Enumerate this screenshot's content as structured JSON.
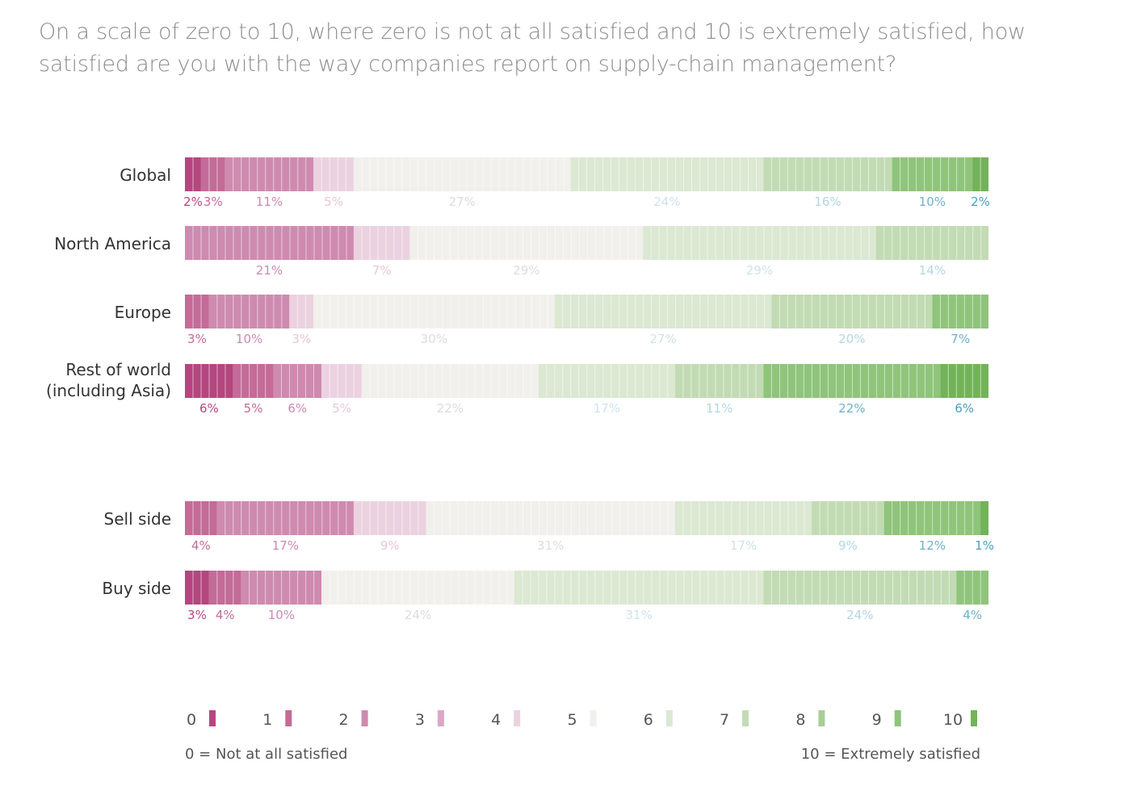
{
  "title": "On a scale of zero to 10, where zero is not at all satisfied and 10 is extremely satisfied, how satisfied are you with the way companies report on supply-chain management?",
  "chart_data": {
    "type": "bar",
    "stacked": true,
    "orientation": "horizontal",
    "scale": [
      0,
      1,
      2,
      3,
      4,
      5,
      6,
      7,
      8,
      9,
      10
    ],
    "colors": [
      "#b5467f",
      "#c46b97",
      "#cf8aaf",
      "#dba8c4",
      "#ecd2e0",
      "#f1f0ec",
      "#dbe8d2",
      "#c2dbb4",
      "#a8ce97",
      "#8fc47b",
      "#72b35a"
    ],
    "label_colors": [
      "#b5467f",
      "#c46b97",
      "#d088b0",
      "#dca8c3",
      "#e6c8d8",
      "#dcdcdc",
      "#cfe3ea",
      "#b3d6e3",
      "#93c4d8",
      "#6fb1cb",
      "#4aa0bf"
    ],
    "groups": [
      {
        "name": "Global",
        "segments": [
          {
            "score": 0,
            "value": 2,
            "label": "2%"
          },
          {
            "score": 1,
            "value": 3,
            "label": "3%"
          },
          {
            "score": 2,
            "value": 11,
            "label": "11%"
          },
          {
            "score": 4,
            "value": 5,
            "label": "5%"
          },
          {
            "score": 5,
            "value": 27,
            "label": "27%"
          },
          {
            "score": 6,
            "value": 24,
            "label": "24%"
          },
          {
            "score": 7,
            "value": 16,
            "label": "16%"
          },
          {
            "score": 9,
            "value": 10,
            "label": "10%"
          },
          {
            "score": 10,
            "value": 2,
            "label": "2%"
          }
        ]
      },
      {
        "name": "North America",
        "segments": [
          {
            "score": 2,
            "value": 21,
            "label": "21%"
          },
          {
            "score": 4,
            "value": 7,
            "label": "7%"
          },
          {
            "score": 5,
            "value": 29,
            "label": "29%"
          },
          {
            "score": 6,
            "value": 29,
            "label": "29%"
          },
          {
            "score": 7,
            "value": 14,
            "label": "14%"
          }
        ]
      },
      {
        "name": "Europe",
        "segments": [
          {
            "score": 1,
            "value": 3,
            "label": "3%"
          },
          {
            "score": 2,
            "value": 10,
            "label": "10%"
          },
          {
            "score": 4,
            "value": 3,
            "label": "3%"
          },
          {
            "score": 5,
            "value": 30,
            "label": "30%"
          },
          {
            "score": 6,
            "value": 27,
            "label": "27%"
          },
          {
            "score": 7,
            "value": 20,
            "label": "20%"
          },
          {
            "score": 9,
            "value": 7,
            "label": "7%"
          }
        ]
      },
      {
        "name": "Rest of world",
        "name_line2": "(including Asia)",
        "segments": [
          {
            "score": 0,
            "value": 6,
            "label": "6%"
          },
          {
            "score": 1,
            "value": 5,
            "label": "5%"
          },
          {
            "score": 2,
            "value": 6,
            "label": "6%"
          },
          {
            "score": 4,
            "value": 5,
            "label": "5%"
          },
          {
            "score": 5,
            "value": 22,
            "label": "22%"
          },
          {
            "score": 6,
            "value": 17,
            "label": "17%"
          },
          {
            "score": 7,
            "value": 11,
            "label": "11%"
          },
          {
            "score": 9,
            "value": 22,
            "label": "22%"
          },
          {
            "score": 10,
            "value": 6,
            "label": "6%"
          }
        ]
      },
      {
        "name": "Sell side",
        "segments": [
          {
            "score": 1,
            "value": 4,
            "label": "4%"
          },
          {
            "score": 2,
            "value": 17,
            "label": "17%"
          },
          {
            "score": 4,
            "value": 9,
            "label": "9%"
          },
          {
            "score": 5,
            "value": 31,
            "label": "31%"
          },
          {
            "score": 6,
            "value": 17,
            "label": "17%"
          },
          {
            "score": 7,
            "value": 9,
            "label": "9%"
          },
          {
            "score": 9,
            "value": 12,
            "label": "12%"
          },
          {
            "score": 10,
            "value": 1,
            "label": "1%"
          }
        ]
      },
      {
        "name": "Buy side",
        "segments": [
          {
            "score": 0,
            "value": 3,
            "label": "3%"
          },
          {
            "score": 1,
            "value": 4,
            "label": "4%"
          },
          {
            "score": 2,
            "value": 10,
            "label": "10%"
          },
          {
            "score": 5,
            "value": 24,
            "label": "24%"
          },
          {
            "score": 6,
            "value": 31,
            "label": "31%"
          },
          {
            "score": 7,
            "value": 24,
            "label": "24%"
          },
          {
            "score": 9,
            "value": 4,
            "label": "4%"
          }
        ]
      }
    ],
    "legend": {
      "items": [
        "0",
        "1",
        "2",
        "3",
        "4",
        "5",
        "6",
        "7",
        "8",
        "9",
        "10"
      ],
      "note_left": "0 = Not at all satisfied",
      "note_right": "10 = Extremely satisfied"
    }
  }
}
